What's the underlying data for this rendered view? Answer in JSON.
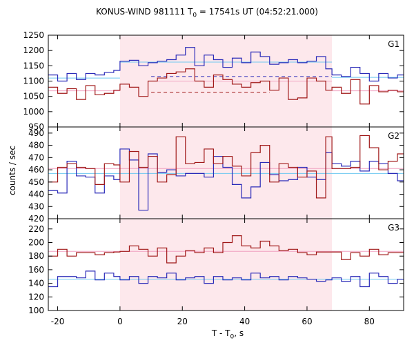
{
  "chart_data": {
    "type": "line",
    "title": {
      "prefix": "KONUS-WIND 981111 T",
      "sub": "0",
      "suffix": " = 17541s UT (04:52:21.000)"
    },
    "ylabel": "counts / sec",
    "xlabel": {
      "prefix": "T - T",
      "sub": "0",
      "suffix": ", s"
    },
    "xlim": [
      -23,
      91
    ],
    "xticks": [
      -20,
      0,
      20,
      40,
      60,
      80
    ],
    "shaded_interval": [
      0,
      68
    ],
    "colors": {
      "blue": "#2a2ab8",
      "red": "#a01818",
      "cyan": "#6ec8f0",
      "pink": "#f0a0c0",
      "shade": "#fde8ec"
    },
    "panels": [
      {
        "label": "G1",
        "ylim": [
          950,
          1250
        ],
        "yticks": [
          950,
          1000,
          1050,
          1100,
          1150,
          1200,
          1250
        ],
        "x_edges": [
          -23,
          -20,
          -17,
          -14,
          -11,
          -8,
          -5,
          -2,
          0,
          3,
          6,
          9,
          12,
          15,
          18,
          21,
          24,
          27,
          30,
          33,
          36,
          39,
          42,
          45,
          48,
          51,
          54,
          57,
          60,
          63,
          66,
          68,
          71,
          74,
          77,
          80,
          83,
          86,
          89,
          91
        ],
        "series": [
          {
            "name": "blue",
            "values": [
              1120,
              1100,
              1125,
              1105,
              1125,
              1120,
              1128,
              1135,
              1165,
              1168,
              1150,
              1160,
              1165,
              1170,
              1185,
              1210,
              1150,
              1185,
              1170,
              1145,
              1175,
              1160,
              1195,
              1180,
              1155,
              1160,
              1170,
              1160,
              1165,
              1180,
              1140,
              1120,
              1115,
              1145,
              1125,
              1100,
              1125,
              1110,
              1120
            ]
          },
          {
            "name": "red",
            "values": [
              1080,
              1060,
              1075,
              1040,
              1085,
              1055,
              1060,
              1070,
              1090,
              1080,
              1050,
              1100,
              1110,
              1125,
              1130,
              1140,
              1100,
              1080,
              1120,
              1105,
              1090,
              1080,
              1095,
              1100,
              1070,
              1110,
              1040,
              1045,
              1110,
              1100,
              1070,
              1080,
              1060,
              1105,
              1025,
              1085,
              1065,
              1070,
              1065
            ]
          }
        ],
        "fits": [
          {
            "series": "blue",
            "segments": [
              {
                "x": [
                  -23,
                  0
                ],
                "y": 1110,
                "dash": false
              },
              {
                "x": [
                  0,
                  68
                ],
                "y": 1162,
                "dash": false
              },
              {
                "x": [
                  68,
                  91
                ],
                "y": 1112,
                "dash": false
              },
              {
                "x": [
                  10,
                  68
                ],
                "y": 1115,
                "dash": true
              }
            ]
          },
          {
            "series": "red",
            "segments": [
              {
                "x": [
                  -23,
                  0
                ],
                "y": 1068,
                "dash": false
              },
              {
                "x": [
                  10,
                  68
                ],
                "y": 1100,
                "dash": false
              },
              {
                "x": [
                  68,
                  91
                ],
                "y": 1068,
                "dash": false
              },
              {
                "x": [
                  10,
                  48
                ],
                "y": 1063,
                "dash": true
              }
            ]
          }
        ]
      },
      {
        "label": "G2",
        "ylim": [
          420,
          495
        ],
        "yticks": [
          420,
          430,
          440,
          450,
          460,
          470,
          480,
          490
        ],
        "x_edges": [
          -23,
          -20,
          -17,
          -14,
          -11,
          -8,
          -5,
          -2,
          0,
          3,
          6,
          9,
          12,
          15,
          18,
          21,
          24,
          27,
          30,
          33,
          36,
          39,
          42,
          45,
          48,
          51,
          54,
          57,
          60,
          63,
          66,
          68,
          71,
          74,
          77,
          80,
          83,
          86,
          89,
          91
        ],
        "series": [
          {
            "name": "blue",
            "values": [
              443,
              441,
              467,
              455,
              454,
              441,
              455,
              452,
              477,
              468,
              427,
              473,
              458,
              460,
              455,
              457,
              457,
              454,
              471,
              462,
              448,
              437,
              446,
              466,
              456,
              451,
              452,
              462,
              454,
              452,
              474,
              465,
              463,
              467,
              459,
              467,
              465,
              457,
              451
            ]
          },
          {
            "name": "red",
            "values": [
              450,
              462,
              465,
              462,
              461,
              448,
              465,
              464,
              450,
              475,
              462,
              471,
              450,
              456,
              487,
              465,
              466,
              477,
              465,
              471,
              463,
              455,
              474,
              480,
              450,
              465,
              462,
              454,
              459,
              437,
              487,
              461,
              461,
              462,
              488,
              478,
              460,
              467,
              473
            ]
          }
        ],
        "fits": [
          {
            "series": "blue",
            "segments": [
              {
                "x": [
                  -23,
                  91
                ],
                "y": 457,
                "dash": false
              }
            ]
          },
          {
            "series": "red",
            "segments": [
              {
                "x": [
                  -23,
                  91
                ],
                "y": 461,
                "dash": false
              }
            ]
          }
        ]
      },
      {
        "label": "G3",
        "ylim": [
          100,
          235
        ],
        "yticks": [
          100,
          120,
          140,
          160,
          180,
          200,
          220
        ],
        "x_edges": [
          -23,
          -20,
          -17,
          -14,
          -11,
          -8,
          -5,
          -2,
          0,
          3,
          6,
          9,
          12,
          15,
          18,
          21,
          24,
          27,
          30,
          33,
          36,
          39,
          42,
          45,
          48,
          51,
          54,
          57,
          60,
          63,
          66,
          68,
          71,
          74,
          77,
          80,
          83,
          86,
          89,
          91
        ],
        "series": [
          {
            "name": "blue",
            "values": [
              135,
              150,
              150,
              148,
              158,
              145,
              155,
              150,
              145,
              150,
              140,
              150,
              148,
              155,
              145,
              148,
              150,
              140,
              150,
              145,
              148,
              145,
              155,
              148,
              150,
              145,
              150,
              148,
              146,
              143,
              145,
              148,
              143,
              150,
              135,
              155,
              150,
              140,
              146
            ]
          },
          {
            "name": "red",
            "values": [
              180,
              190,
              180,
              185,
              185,
              182,
              185,
              186,
              187,
              195,
              190,
              180,
              192,
              170,
              180,
              188,
              185,
              192,
              185,
              200,
              210,
              195,
              192,
              202,
              195,
              188,
              190,
              185,
              182,
              186,
              186,
              186,
              175,
              185,
              180,
              190,
              182,
              185,
              185
            ]
          }
        ],
        "fits": [
          {
            "series": "blue",
            "segments": [
              {
                "x": [
                  -23,
                  91
                ],
                "y": 146,
                "dash": false
              }
            ]
          },
          {
            "series": "red",
            "segments": [
              {
                "x": [
                  -23,
                  91
                ],
                "y": 187,
                "dash": false
              }
            ]
          }
        ]
      }
    ]
  }
}
